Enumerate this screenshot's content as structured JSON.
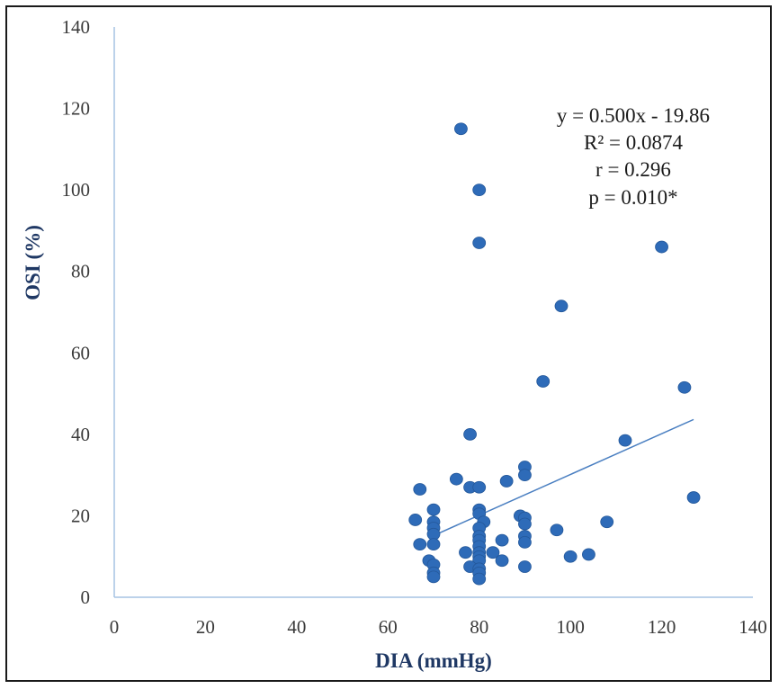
{
  "chart_data": {
    "type": "scatter",
    "title": "",
    "xlabel": "DIA (mmHg)",
    "ylabel": "OSI (%)",
    "xlim": [
      0,
      140
    ],
    "ylim": [
      0,
      140
    ],
    "x_ticks": [
      "0",
      "20",
      "40",
      "60",
      "80",
      "100",
      "120",
      "140"
    ],
    "y_ticks": [
      "0",
      "20",
      "40",
      "60",
      "80",
      "100",
      "120",
      "140"
    ],
    "grid": false,
    "legend": "none",
    "marker_color": "#2e6bb8",
    "trendline_color": "#4a7fc1",
    "axis_color": "#a6c3e3",
    "annotation": [
      "y = 0.500x - 19.86",
      "R² = 0.0874",
      "r = 0.296",
      "p = 0.010*"
    ],
    "trendline": {
      "slope": 0.5,
      "intercept": -19.86,
      "x_range": [
        70,
        127
      ]
    },
    "points": [
      [
        76,
        115
      ],
      [
        80,
        100
      ],
      [
        80,
        87
      ],
      [
        120,
        86
      ],
      [
        98,
        71.5
      ],
      [
        94,
        53
      ],
      [
        125,
        51.5
      ],
      [
        78,
        40
      ],
      [
        112,
        38.5
      ],
      [
        90,
        32
      ],
      [
        90,
        30
      ],
      [
        75,
        29
      ],
      [
        86,
        28.5
      ],
      [
        78,
        27
      ],
      [
        80,
        27
      ],
      [
        67,
        26.5
      ],
      [
        127,
        24.5
      ],
      [
        70,
        21.5
      ],
      [
        80,
        21.5
      ],
      [
        80,
        20.5
      ],
      [
        89,
        20
      ],
      [
        90,
        19.5
      ],
      [
        66,
        19
      ],
      [
        108,
        18.5
      ],
      [
        70,
        18.5
      ],
      [
        81,
        18.5
      ],
      [
        90,
        18
      ],
      [
        70,
        17
      ],
      [
        80,
        17
      ],
      [
        97,
        16.5
      ],
      [
        70,
        15.5
      ],
      [
        80,
        15
      ],
      [
        90,
        15
      ],
      [
        80,
        14
      ],
      [
        85,
        14
      ],
      [
        90,
        13.5
      ],
      [
        70,
        13
      ],
      [
        67,
        13
      ],
      [
        80,
        12.5
      ],
      [
        77,
        11
      ],
      [
        83,
        11
      ],
      [
        80,
        11
      ],
      [
        104,
        10.5
      ],
      [
        100,
        10
      ],
      [
        80,
        10
      ],
      [
        69,
        9
      ],
      [
        85,
        9
      ],
      [
        80,
        9
      ],
      [
        70,
        8
      ],
      [
        78,
        7.5
      ],
      [
        90,
        7.5
      ],
      [
        80,
        7
      ],
      [
        70,
        6
      ],
      [
        80,
        6
      ],
      [
        70,
        5
      ],
      [
        80,
        4.5
      ]
    ]
  }
}
